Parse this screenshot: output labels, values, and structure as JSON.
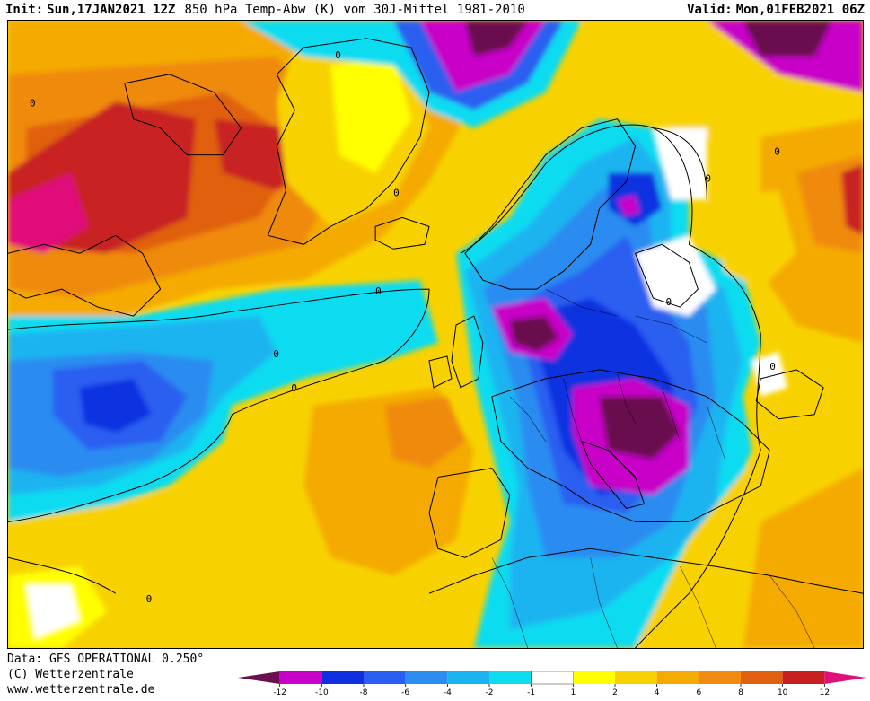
{
  "header": {
    "init_label": "Init:",
    "init_date": "Sun,17JAN2021 12Z",
    "parameter": "850 hPa Temp-Abw (K) vom 30J-Mittel 1981-2010",
    "valid_label": "Valid:",
    "valid_date": "Mon,01FEB2021 06Z"
  },
  "footer": {
    "data_source": "Data: GFS OPERATIONAL 0.250°",
    "copyright": "(C) Wetterzentrale",
    "website": "www.wetterzentrale.de"
  },
  "colorbar": {
    "colors": [
      "#6a0f4f",
      "#c800c8",
      "#1030e0",
      "#2a5ef0",
      "#2c8cf0",
      "#1ab4f0",
      "#10dcf0",
      "#ffffff",
      "#ffff00",
      "#f8d200",
      "#f4aa00",
      "#f08a10",
      "#e06010",
      "#c82020",
      "#e0107a"
    ],
    "ticks": [
      "-12",
      "-10",
      "-8",
      "-6",
      "-4",
      "-2",
      "-1",
      "1",
      "2",
      "4",
      "6",
      "8",
      "10",
      "12"
    ]
  },
  "map": {
    "palette": {
      "deep_purple": "#6a0f4f",
      "magenta": "#c800c8",
      "blue_dark": "#1030e0",
      "blue": "#2a5ef0",
      "blue_mid": "#2c8cf0",
      "cyan_blue": "#1ab4f0",
      "cyan": "#10dcf0",
      "white": "#ffffff",
      "yellow": "#ffff00",
      "gold": "#f8d200",
      "orange_light": "#f4aa00",
      "orange": "#f08a10",
      "orange_dark": "#e06010",
      "red": "#c82020",
      "crimson": "#e0107a"
    },
    "contour_label": "0"
  }
}
